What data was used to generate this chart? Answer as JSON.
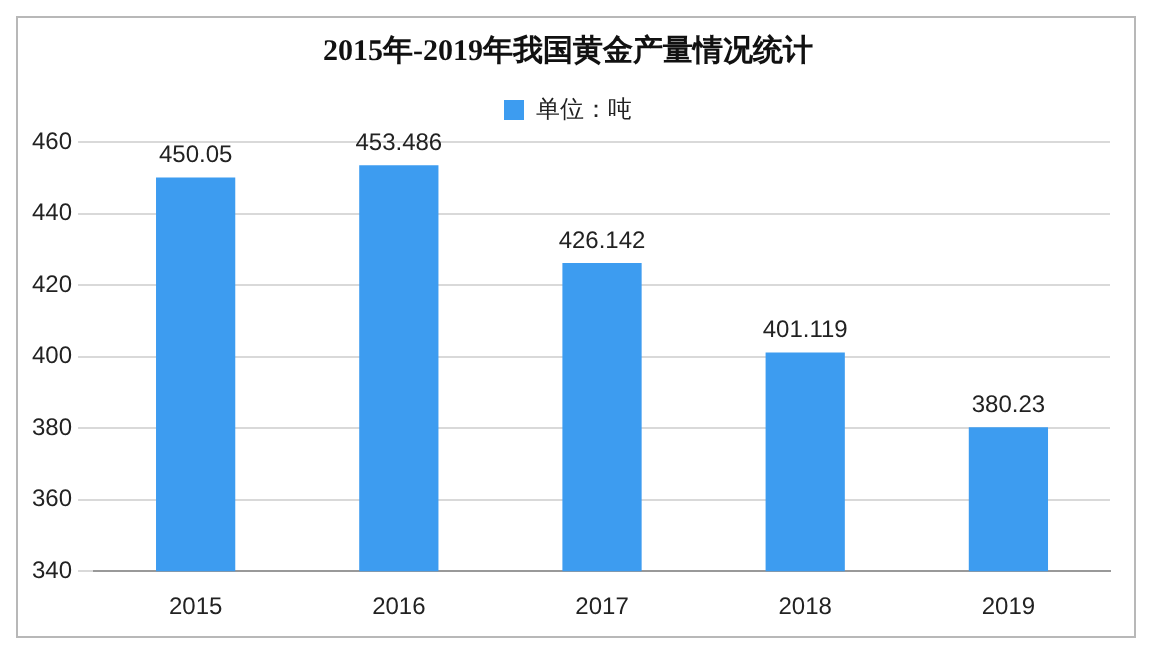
{
  "chart_data": {
    "type": "bar",
    "title": "2015年-2019年我国黄金产量情况统计",
    "categories": [
      "2015",
      "2016",
      "2017",
      "2018",
      "2019"
    ],
    "series": [
      {
        "name": "单位：吨",
        "color": "#3d9cf0",
        "values": [
          450.05,
          453.486,
          426.142,
          401.119,
          380.23
        ]
      }
    ],
    "ylim": [
      340,
      460
    ],
    "yticks": [
      340,
      360,
      380,
      400,
      420,
      440,
      460
    ],
    "grid": "y",
    "legend": "top",
    "data_labels": true
  }
}
